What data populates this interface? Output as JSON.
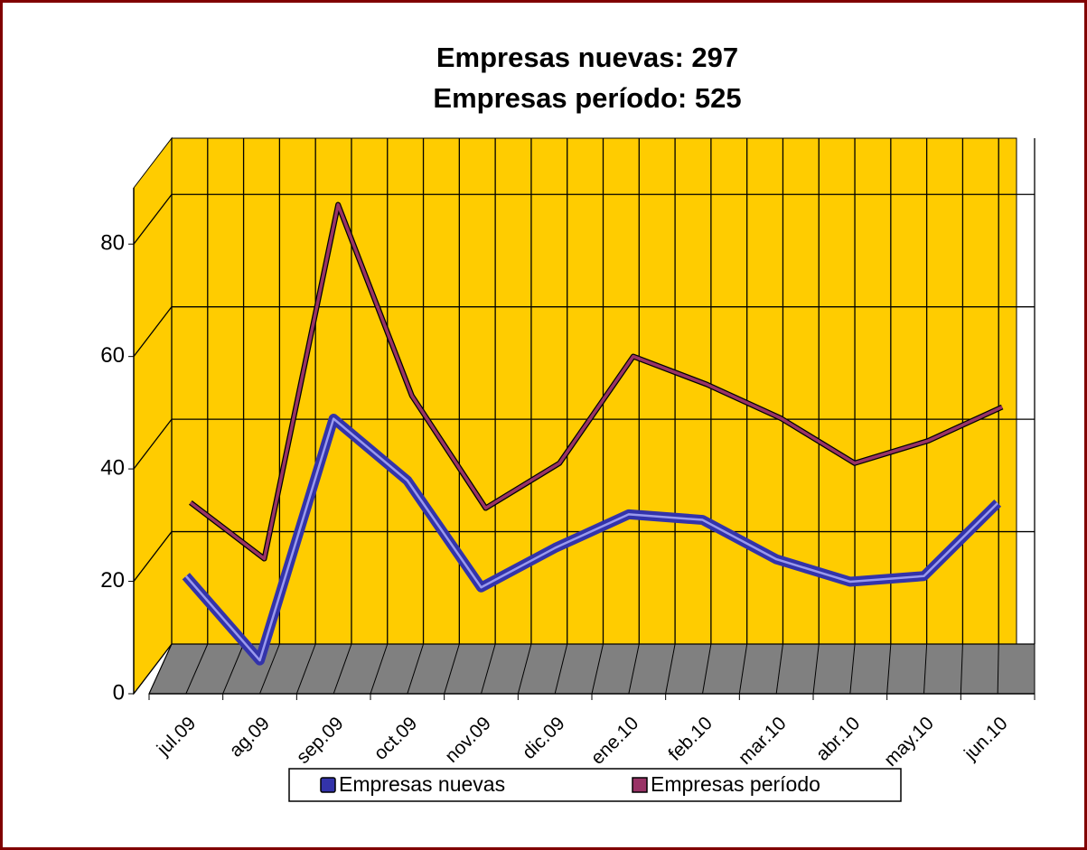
{
  "chart_data": {
    "type": "line3d",
    "title": [
      "Empresas nuevas: 297",
      "Empresas período: 525"
    ],
    "categories": [
      "jul.09",
      "ag.09",
      "sep.09",
      "oct.09",
      "nov.09",
      "dic.09",
      "ene.10",
      "feb.10",
      "mar.10",
      "abr.10",
      "may.10",
      "jun.10"
    ],
    "series": [
      {
        "name": "Empresas nuevas",
        "color": "#3333aa",
        "values": [
          19,
          4,
          47,
          36,
          17,
          24,
          30,
          29,
          22,
          18,
          19,
          32
        ]
      },
      {
        "name": "Empresas período",
        "color": "#993366",
        "values": [
          30,
          20,
          83,
          49,
          29,
          37,
          56,
          51,
          45,
          37,
          41,
          47
        ]
      }
    ],
    "ylim": [
      0,
      90
    ],
    "yticks": [
      0,
      20,
      40,
      60,
      80
    ],
    "grid": true,
    "wall_color": "#ffcc00",
    "floor_color": "#808080",
    "legend": "bottom"
  }
}
